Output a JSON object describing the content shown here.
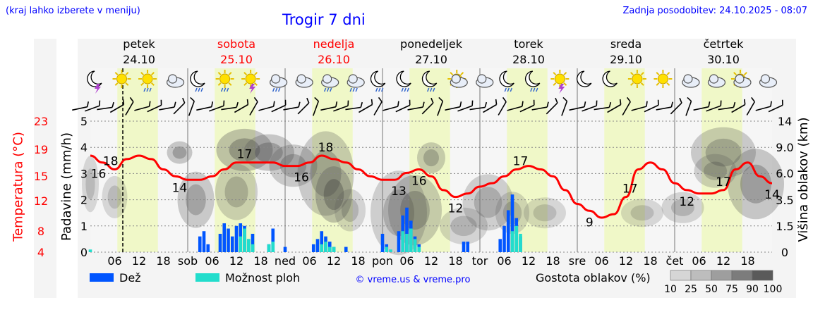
{
  "header": {
    "hint": "(kraj lahko izberete v meniju)",
    "title": "Trogir 7 dni",
    "updated": "Zadnja posodobitev: 24.10.2025 - 08:07"
  },
  "colors": {
    "rain": "#0055ff",
    "showers": "#22ddcc",
    "temperature": "#ff0000",
    "weekend_day": "#ff0000",
    "day_band": "#f0f8c8",
    "night_band": "#f6f6f6",
    "text_blue": "#0000ff"
  },
  "days": [
    {
      "name": "petek",
      "date": "24.10",
      "weekend": false
    },
    {
      "name": "sobota",
      "date": "25.10",
      "weekend": true
    },
    {
      "name": "nedelja",
      "date": "26.10",
      "weekend": true
    },
    {
      "name": "ponedeljek",
      "date": "27.10",
      "weekend": false
    },
    {
      "name": "torek",
      "date": "28.10",
      "weekend": false
    },
    {
      "name": "sreda",
      "date": "29.10",
      "weekend": false
    },
    {
      "name": "četrtek",
      "date": "30.10",
      "weekend": false
    }
  ],
  "weather_icons": [
    "moon-thunder-icon",
    "sun-icon",
    "sun-rain-icon",
    "cloudy-night-icon",
    "moon-rain-icon",
    "sun-rain-icon",
    "sun-thunder-icon",
    "cloud-rain-icon",
    "cloud-icon",
    "cloud-rain-icon",
    "cloud-rain-icon",
    "moon-rain-icon",
    "moon-rain-icon",
    "moon-rain-icon",
    "sun-cloud-icon",
    "cloudy-night-icon",
    "moon-rain-icon",
    "moon-rain-icon",
    "sun-thunder-icon",
    "moon-icon",
    "moon-icon",
    "sun-icon",
    "sun-icon",
    "cloudy-night-icon",
    "cloudy-night-icon",
    "sun-cloud-icon",
    "cloud-icon"
  ],
  "chart_data": {
    "type": "meteogram",
    "x_ticks": [
      "06",
      "12",
      "18",
      "sob",
      "06",
      "12",
      "18",
      "ned",
      "06",
      "12",
      "18",
      "pon",
      "06",
      "12",
      "18",
      "tor",
      "06",
      "12",
      "18",
      "sre",
      "06",
      "12",
      "18",
      "čet",
      "06",
      "12",
      "18"
    ],
    "x_hours_start": 0,
    "x_hours_end": 168,
    "now_hour": 8,
    "left_axis_label": "Padavine (mm/h)",
    "left_axis_ticks": [
      "0",
      "1",
      "2",
      "3",
      "4",
      "5"
    ],
    "left_axis_range": [
      0,
      5
    ],
    "temp_axis_label": "Temperatura (°C)",
    "temp_axis_ticks": [
      "4",
      "8",
      "12",
      "15",
      "19",
      "23"
    ],
    "right_axis_label": "Višina oblakov (km)",
    "right_axis_ticks": [
      "0",
      "1.5",
      "3.5",
      "6.0",
      "9.0",
      "14"
    ],
    "temperature": {
      "name": "Temperatura",
      "hours": [
        0,
        3,
        6,
        9,
        12,
        15,
        18,
        21,
        24,
        27,
        30,
        33,
        36,
        39,
        42,
        45,
        48,
        51,
        54,
        57,
        60,
        63,
        66,
        69,
        72,
        75,
        78,
        81,
        84,
        87,
        90,
        93,
        96,
        99,
        102,
        105,
        108,
        111,
        114,
        117,
        120,
        123,
        126,
        129,
        132,
        135,
        138,
        141,
        144,
        147,
        150,
        153,
        156,
        159,
        162,
        165,
        168
      ],
      "values": [
        18,
        17,
        16,
        17.5,
        18,
        17.5,
        16,
        15,
        14.5,
        14.5,
        15,
        16,
        17,
        17,
        17,
        17,
        16.5,
        16.5,
        17,
        18,
        17.5,
        17,
        16,
        15,
        14.5,
        14.5,
        15.5,
        16,
        15,
        13,
        12,
        12.5,
        13.5,
        14,
        15,
        16,
        16.5,
        16,
        15,
        13,
        11,
        10,
        9,
        9.5,
        12,
        16,
        17,
        16,
        14,
        13,
        12.5,
        12.5,
        13,
        16,
        17,
        15,
        14
      ],
      "labels": [
        {
          "hour": 2,
          "value": "16"
        },
        {
          "hour": 5,
          "value": "18"
        },
        {
          "hour": 22,
          "value": "14"
        },
        {
          "hour": 38,
          "value": "17"
        },
        {
          "hour": 52,
          "value": "16"
        },
        {
          "hour": 58,
          "value": "18"
        },
        {
          "hour": 76,
          "value": "13"
        },
        {
          "hour": 81,
          "value": "16"
        },
        {
          "hour": 90,
          "value": "12"
        },
        {
          "hour": 106,
          "value": "17"
        },
        {
          "hour": 123,
          "value": "9"
        },
        {
          "hour": 133,
          "value": "17"
        },
        {
          "hour": 147,
          "value": "12"
        },
        {
          "hour": 156,
          "value": "17"
        },
        {
          "hour": 168,
          "value": "14"
        }
      ]
    },
    "rain": {
      "name": "Dež",
      "hours": [
        27,
        28,
        29,
        32,
        33,
        34,
        35,
        36,
        37,
        38,
        39,
        40,
        44,
        45,
        48,
        55,
        56,
        57,
        58,
        59,
        60,
        63,
        72,
        73,
        76,
        77,
        78,
        79,
        80,
        81,
        92,
        93,
        101,
        102,
        103,
        104,
        105,
        106
      ],
      "values": [
        0.6,
        0.8,
        0.3,
        0.7,
        1.1,
        0.9,
        0.6,
        1.0,
        1.1,
        1.0,
        0.5,
        0.7,
        0.3,
        0.9,
        0.2,
        0.3,
        0.5,
        0.8,
        0.6,
        0.4,
        0.2,
        0.2,
        0.7,
        0.3,
        0.8,
        1.4,
        1.7,
        1.2,
        0.6,
        0.3,
        0.4,
        0.4,
        0.5,
        1.0,
        1.6,
        2.2,
        1.3,
        0.6
      ]
    },
    "showers": {
      "name": "Možnost ploh",
      "hours": [
        0,
        37,
        38,
        39,
        40,
        44,
        45,
        57,
        58,
        59,
        60,
        73,
        74,
        77,
        78,
        79,
        80,
        81,
        104,
        105,
        106
      ],
      "values": [
        0.1,
        0.6,
        0.9,
        0.5,
        0.3,
        0.3,
        0.4,
        0.3,
        0.4,
        0.2,
        0.2,
        0.2,
        0.1,
        0.8,
        0.7,
        0.9,
        0.5,
        0.2,
        0.8,
        1.0,
        0.7
      ]
    },
    "legend": {
      "rain_label": "Dež",
      "showers_label": "Možnost ploh",
      "credit": "© vreme.us & vreme.pro",
      "density_label": "Gostota oblakov (%)",
      "density_ticks": [
        "10",
        "25",
        "50",
        "75",
        "90",
        "100"
      ]
    }
  }
}
